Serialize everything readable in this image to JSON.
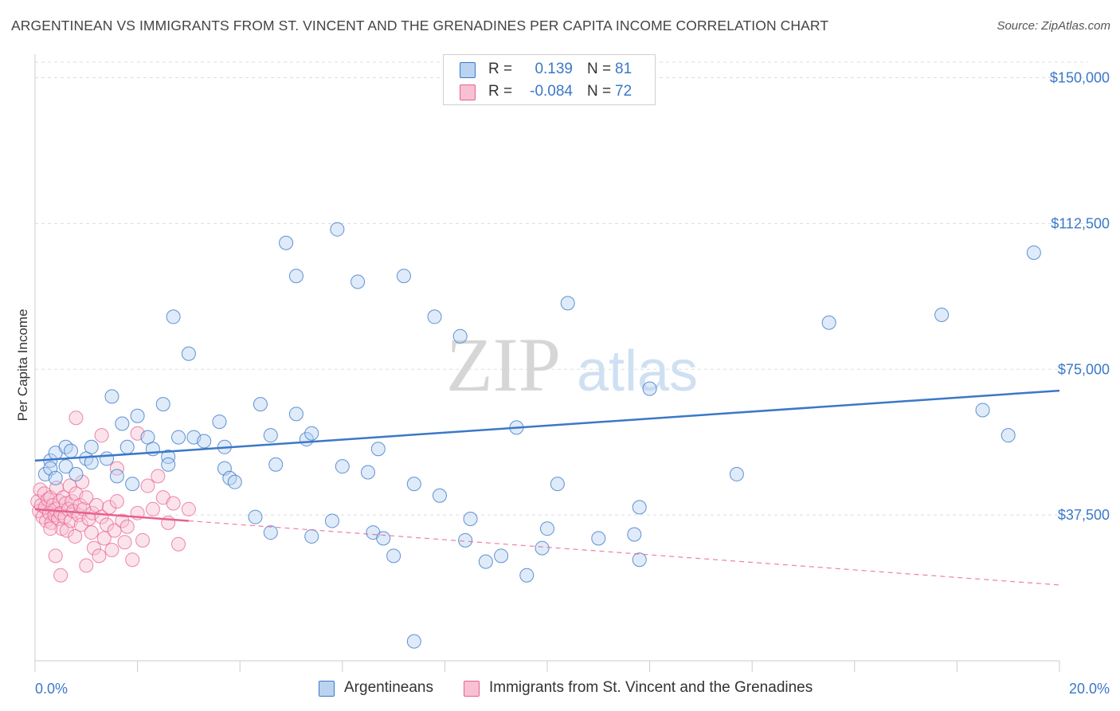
{
  "header": {
    "title": "ARGENTINEAN VS IMMIGRANTS FROM ST. VINCENT AND THE GRENADINES PER CAPITA INCOME CORRELATION CHART",
    "source": "Source: ZipAtlas.com"
  },
  "watermark": {
    "zip": "ZIP",
    "atlas": "atlas"
  },
  "legend": {
    "rows": [
      {
        "r_label": "R =",
        "r_value": "0.139",
        "n_label": "N =",
        "n_value": "81"
      },
      {
        "r_label": "R =",
        "r_value": "-0.084",
        "n_label": "N =",
        "n_value": "72"
      }
    ]
  },
  "bottom_legend": {
    "series1": "Argentineans",
    "series2": "Immigrants from St. Vincent and the Grenadines"
  },
  "colors": {
    "blue": "#3b78c8",
    "blue_fill": "#b9d3f1",
    "pink": "#e8608c",
    "pink_fill": "#f7c1d3",
    "grid": "#dddddd"
  },
  "chart_data": {
    "type": "scatter",
    "title": "ARGENTINEAN VS IMMIGRANTS FROM ST. VINCENT AND THE GRENADINES PER CAPITA INCOME CORRELATION CHART",
    "xlabel": "",
    "ylabel": "Per Capita Income",
    "xlim": [
      0,
      20
    ],
    "ylim": [
      0,
      154000
    ],
    "x_tick_labels": [
      "0.0%",
      "20.0%"
    ],
    "y_ticks": [
      37500,
      75000,
      112500,
      150000
    ],
    "y_tick_labels": [
      "$37,500",
      "$75,000",
      "$112,500",
      "$150,000"
    ],
    "grid": true,
    "legend_position": "top-center",
    "series": [
      {
        "name": "Argentineans",
        "R": 0.139,
        "N": 81,
        "trend": {
          "x": [
            0,
            20
          ],
          "y": [
            51500,
            69500
          ],
          "style": "solid"
        },
        "points": [
          [
            0.2,
            48000
          ],
          [
            0.3,
            51500
          ],
          [
            0.3,
            49500
          ],
          [
            0.4,
            47000
          ],
          [
            0.4,
            53500
          ],
          [
            0.6,
            55000
          ],
          [
            0.6,
            50000
          ],
          [
            0.7,
            54000
          ],
          [
            0.8,
            48000
          ],
          [
            1.0,
            52000
          ],
          [
            1.1,
            51000
          ],
          [
            1.1,
            55000
          ],
          [
            1.4,
            52000
          ],
          [
            1.5,
            68000
          ],
          [
            1.6,
            47500
          ],
          [
            1.7,
            61000
          ],
          [
            1.8,
            55000
          ],
          [
            1.9,
            45500
          ],
          [
            2.0,
            63000
          ],
          [
            2.2,
            57500
          ],
          [
            2.3,
            54500
          ],
          [
            2.5,
            66000
          ],
          [
            2.6,
            52500
          ],
          [
            2.6,
            50500
          ],
          [
            2.7,
            88500
          ],
          [
            2.8,
            57500
          ],
          [
            3.0,
            79000
          ],
          [
            3.1,
            57500
          ],
          [
            3.3,
            56500
          ],
          [
            3.6,
            61500
          ],
          [
            3.7,
            55000
          ],
          [
            3.7,
            49500
          ],
          [
            3.8,
            47000
          ],
          [
            3.9,
            46000
          ],
          [
            4.3,
            37000
          ],
          [
            4.4,
            66000
          ],
          [
            4.6,
            58000
          ],
          [
            4.6,
            33000
          ],
          [
            4.7,
            50500
          ],
          [
            4.9,
            107500
          ],
          [
            5.1,
            99000
          ],
          [
            5.1,
            63500
          ],
          [
            5.3,
            57000
          ],
          [
            5.4,
            58500
          ],
          [
            5.4,
            32000
          ],
          [
            5.8,
            36000
          ],
          [
            5.9,
            111000
          ],
          [
            6.0,
            50000
          ],
          [
            6.3,
            97500
          ],
          [
            6.5,
            48500
          ],
          [
            6.6,
            33000
          ],
          [
            6.7,
            54500
          ],
          [
            6.8,
            31500
          ],
          [
            7.0,
            27000
          ],
          [
            7.2,
            99000
          ],
          [
            7.4,
            45500
          ],
          [
            7.8,
            88500
          ],
          [
            7.9,
            42500
          ],
          [
            8.3,
            83500
          ],
          [
            8.4,
            31000
          ],
          [
            8.5,
            36500
          ],
          [
            8.8,
            25500
          ],
          [
            9.1,
            27000
          ],
          [
            9.4,
            60000
          ],
          [
            9.6,
            22000
          ],
          [
            9.9,
            29000
          ],
          [
            10.0,
            34000
          ],
          [
            10.4,
            92000
          ],
          [
            11.0,
            31500
          ],
          [
            11.7,
            32500
          ],
          [
            11.8,
            39500
          ],
          [
            11.8,
            26000
          ],
          [
            12.0,
            70000
          ],
          [
            13.7,
            48000
          ],
          [
            15.5,
            87000
          ],
          [
            17.7,
            89000
          ],
          [
            18.5,
            64500
          ],
          [
            19.0,
            58000
          ],
          [
            19.5,
            105000
          ],
          [
            7.4,
            5000
          ],
          [
            10.2,
            45500
          ]
        ]
      },
      {
        "name": "Immigrants from St. Vincent and the Grenadines",
        "R": -0.084,
        "N": 72,
        "trend": {
          "x": [
            0,
            3
          ],
          "y": [
            39000,
            36000
          ],
          "style": "solid",
          "extension": {
            "x": [
              3,
              20
            ],
            "y": [
              36000,
              19500
            ],
            "style": "dashed"
          }
        },
        "points": [
          [
            0.05,
            41000
          ],
          [
            0.08,
            38500
          ],
          [
            0.1,
            44000
          ],
          [
            0.12,
            40000
          ],
          [
            0.15,
            37000
          ],
          [
            0.18,
            43000
          ],
          [
            0.2,
            39500
          ],
          [
            0.22,
            36000
          ],
          [
            0.25,
            41500
          ],
          [
            0.28,
            38000
          ],
          [
            0.3,
            42000
          ],
          [
            0.32,
            35500
          ],
          [
            0.35,
            40000
          ],
          [
            0.38,
            37500
          ],
          [
            0.4,
            39000
          ],
          [
            0.42,
            44500
          ],
          [
            0.45,
            36500
          ],
          [
            0.48,
            41000
          ],
          [
            0.5,
            38000
          ],
          [
            0.52,
            34000
          ],
          [
            0.55,
            42000
          ],
          [
            0.58,
            37000
          ],
          [
            0.6,
            40500
          ],
          [
            0.62,
            33500
          ],
          [
            0.65,
            39000
          ],
          [
            0.68,
            45000
          ],
          [
            0.7,
            36000
          ],
          [
            0.72,
            41000
          ],
          [
            0.75,
            38500
          ],
          [
            0.78,
            32000
          ],
          [
            0.8,
            43000
          ],
          [
            0.85,
            37500
          ],
          [
            0.88,
            40000
          ],
          [
            0.9,
            35000
          ],
          [
            0.92,
            46000
          ],
          [
            0.95,
            39000
          ],
          [
            1.0,
            42000
          ],
          [
            1.05,
            36500
          ],
          [
            1.1,
            33000
          ],
          [
            1.12,
            38000
          ],
          [
            1.15,
            29000
          ],
          [
            1.2,
            40000
          ],
          [
            1.25,
            27000
          ],
          [
            1.3,
            37000
          ],
          [
            1.35,
            31500
          ],
          [
            1.4,
            35000
          ],
          [
            1.45,
            39500
          ],
          [
            1.5,
            28500
          ],
          [
            1.55,
            33500
          ],
          [
            1.6,
            41000
          ],
          [
            1.7,
            36000
          ],
          [
            1.75,
            30500
          ],
          [
            1.8,
            34500
          ],
          [
            1.9,
            26000
          ],
          [
            2.0,
            38000
          ],
          [
            2.1,
            31000
          ],
          [
            2.2,
            45000
          ],
          [
            2.3,
            39000
          ],
          [
            2.4,
            47500
          ],
          [
            2.5,
            42000
          ],
          [
            2.6,
            35500
          ],
          [
            2.7,
            40500
          ],
          [
            2.8,
            30000
          ],
          [
            0.4,
            27000
          ],
          [
            0.8,
            62500
          ],
          [
            1.3,
            58000
          ],
          [
            0.5,
            22000
          ],
          [
            1.0,
            24500
          ],
          [
            2.0,
            58500
          ],
          [
            3.0,
            39000
          ],
          [
            0.3,
            34000
          ],
          [
            1.6,
            49500
          ]
        ]
      }
    ]
  }
}
